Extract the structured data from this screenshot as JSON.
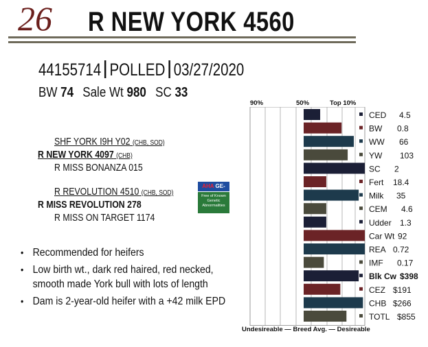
{
  "header": {
    "lot_number": "26",
    "animal_name": "R  NEW YORK 4560"
  },
  "id_line": {
    "registration": "44155714",
    "polled": "POLLED",
    "birth_date": "03/27/2020"
  },
  "stats": {
    "bw_label": "BW",
    "bw_value": "74",
    "sale_wt_label": "Sale Wt",
    "sale_wt_value": "980",
    "sc_label": "SC",
    "sc_value": "33"
  },
  "pedigree": {
    "sire_sire": "SHF YORK I9H Y02",
    "sire_sire_suffix": "(CHB, SOD)",
    "sire": "R NEW YORK 4097",
    "sire_suffix": "(CHB)",
    "sire_dam": "R  MISS BONANZA 015",
    "dam_sire": "R REVOLUTION 4510",
    "dam_sire_suffix": "(CHB, SOD)",
    "dam": "R MISS REVOLUTION 278",
    "dam_dam": "R MISS ON TARGET 1174"
  },
  "logo": {
    "top_text_a": "AHA",
    "top_text_b": "GE-EPD",
    "bottom_text": "Free of Known Genetic Abnormalities"
  },
  "bullets": [
    "Recommended for heifers",
    "Low birth wt., dark red haired, red necked, smooth made York bull with lots of length",
    "Dam is 2-year-old heifer with a +42 milk EPD"
  ],
  "chart_data": {
    "type": "bar",
    "orientation": "horizontal",
    "percentile_labels": [
      "90%",
      "50%",
      "Top 10%"
    ],
    "footer": "Undesireable — Breed Avg. —  Desireable",
    "traits": [
      {
        "label": "CED",
        "value": "4.5",
        "bar": 0.27,
        "color": "#1b1f36",
        "bold": false
      },
      {
        "label": "BW",
        "value": "0.8",
        "bar": 0.62,
        "color": "#6b2326",
        "bold": false
      },
      {
        "label": "WW",
        "value": "66",
        "bar": 0.82,
        "color": "#1d3a4c",
        "bold": false
      },
      {
        "label": "YW",
        "value": "103",
        "bar": 0.72,
        "color": "#4a4a3c",
        "bold": false
      },
      {
        "label": "SC",
        "value": "2",
        "bar": 1.0,
        "color": "#1b1f36",
        "bold": false
      },
      {
        "label": "Fert",
        "value": "18.4",
        "bar": 0.37,
        "color": "#6b2326",
        "bold": false
      },
      {
        "label": "Milk",
        "value": "35",
        "bar": 0.9,
        "color": "#1d3a4c",
        "bold": false
      },
      {
        "label": "CEM",
        "value": "4.6",
        "bar": 0.37,
        "color": "#4a4a3c",
        "bold": false
      },
      {
        "label": "Udder",
        "value": "1.3",
        "bar": 0.37,
        "color": "#1b1f36",
        "bold": false
      },
      {
        "label": "Car Wt",
        "value": "92",
        "bar": 1.0,
        "color": "#6b2326",
        "bold": false
      },
      {
        "label": "REA",
        "value": "0.72",
        "bar": 1.0,
        "color": "#1d3a4c",
        "bold": false
      },
      {
        "label": "IMF",
        "value": "0.17",
        "bar": 0.33,
        "color": "#4a4a3c",
        "bold": false
      },
      {
        "label": "Blk Cw",
        "value": "$398",
        "bar": 0.9,
        "color": "#1b1f36",
        "bold": true
      },
      {
        "label": "CEZ",
        "value": "$191",
        "bar": 0.6,
        "color": "#6b2326",
        "bold": false
      },
      {
        "label": "CHB",
        "value": "$266",
        "bar": 0.97,
        "color": "#1d3a4c",
        "bold": false
      },
      {
        "label": "TOTL",
        "value": "$855",
        "bar": 0.7,
        "color": "#4a4a3c",
        "bold": false
      }
    ]
  }
}
